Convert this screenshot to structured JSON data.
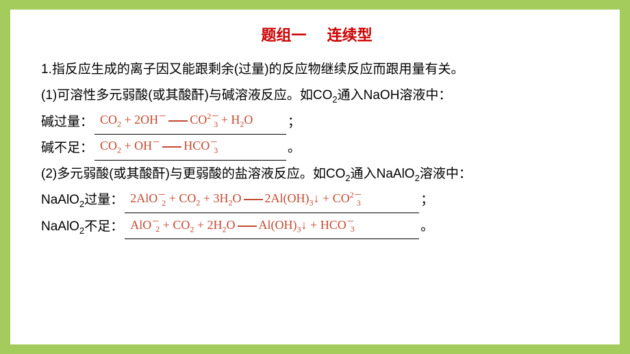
{
  "title": {
    "part1": "题组一",
    "spacer": "　",
    "part2": "连续型",
    "color": "#cc0000",
    "fontsize": 22
  },
  "intro": {
    "number": "1.",
    "text": "指反应生成的离子因又能跟剩余(过量)的反应物继续反应而跟用量有关。"
  },
  "item1": {
    "number": "(1)",
    "text": "可溶性多元弱酸(或其酸酐)与碱溶液反应。如CO",
    "sub1": "2",
    "text2": "通入NaOH溶液中：",
    "case1_label": "碱过量：",
    "case1_answer_parts": [
      "CO",
      "2",
      " + 2OH",
      "－",
      "CO",
      "2－",
      "3",
      " + H",
      "2",
      "O"
    ],
    "case1_end": "；",
    "case2_label": "碱不足：",
    "case2_answer_parts": [
      "CO",
      "2",
      " + OH",
      "－",
      "HCO",
      "－",
      "3"
    ],
    "case2_end": "。"
  },
  "item2": {
    "number": "(2)",
    "text": "多元弱酸(或其酸酐)与更弱酸的盐溶液反应。如CO",
    "sub1": "2",
    "text2": "通入NaAlO",
    "sub2": "2",
    "text3": "溶液中：",
    "case1_label_a": "NaAlO",
    "case1_label_sub": "2",
    "case1_label_b": "过量：",
    "case1_answer_parts": [
      "2AlO",
      "－",
      "2",
      " + CO",
      "2",
      " + 3H",
      "2",
      "O",
      "2Al(OH)",
      "3",
      "↓ + CO",
      "2－",
      "3"
    ],
    "case1_end": "；",
    "case2_label_a": "NaAlO",
    "case2_label_sub": "2",
    "case2_label_b": "不足：",
    "case2_answer_parts": [
      "AlO",
      "－",
      "2",
      " + CO",
      "2",
      " + 2H",
      "2",
      "O",
      "Al(OH)",
      "3",
      "↓ + HCO",
      "－",
      "3"
    ],
    "case2_end": "。"
  },
  "styling": {
    "background_outer": "#a4cc5c",
    "background_inner": "#ffffff",
    "text_color": "#000000",
    "answer_color": "#c44830",
    "body_fontsize": 19,
    "answer_fontsize": 18,
    "line_height": 1.9
  }
}
